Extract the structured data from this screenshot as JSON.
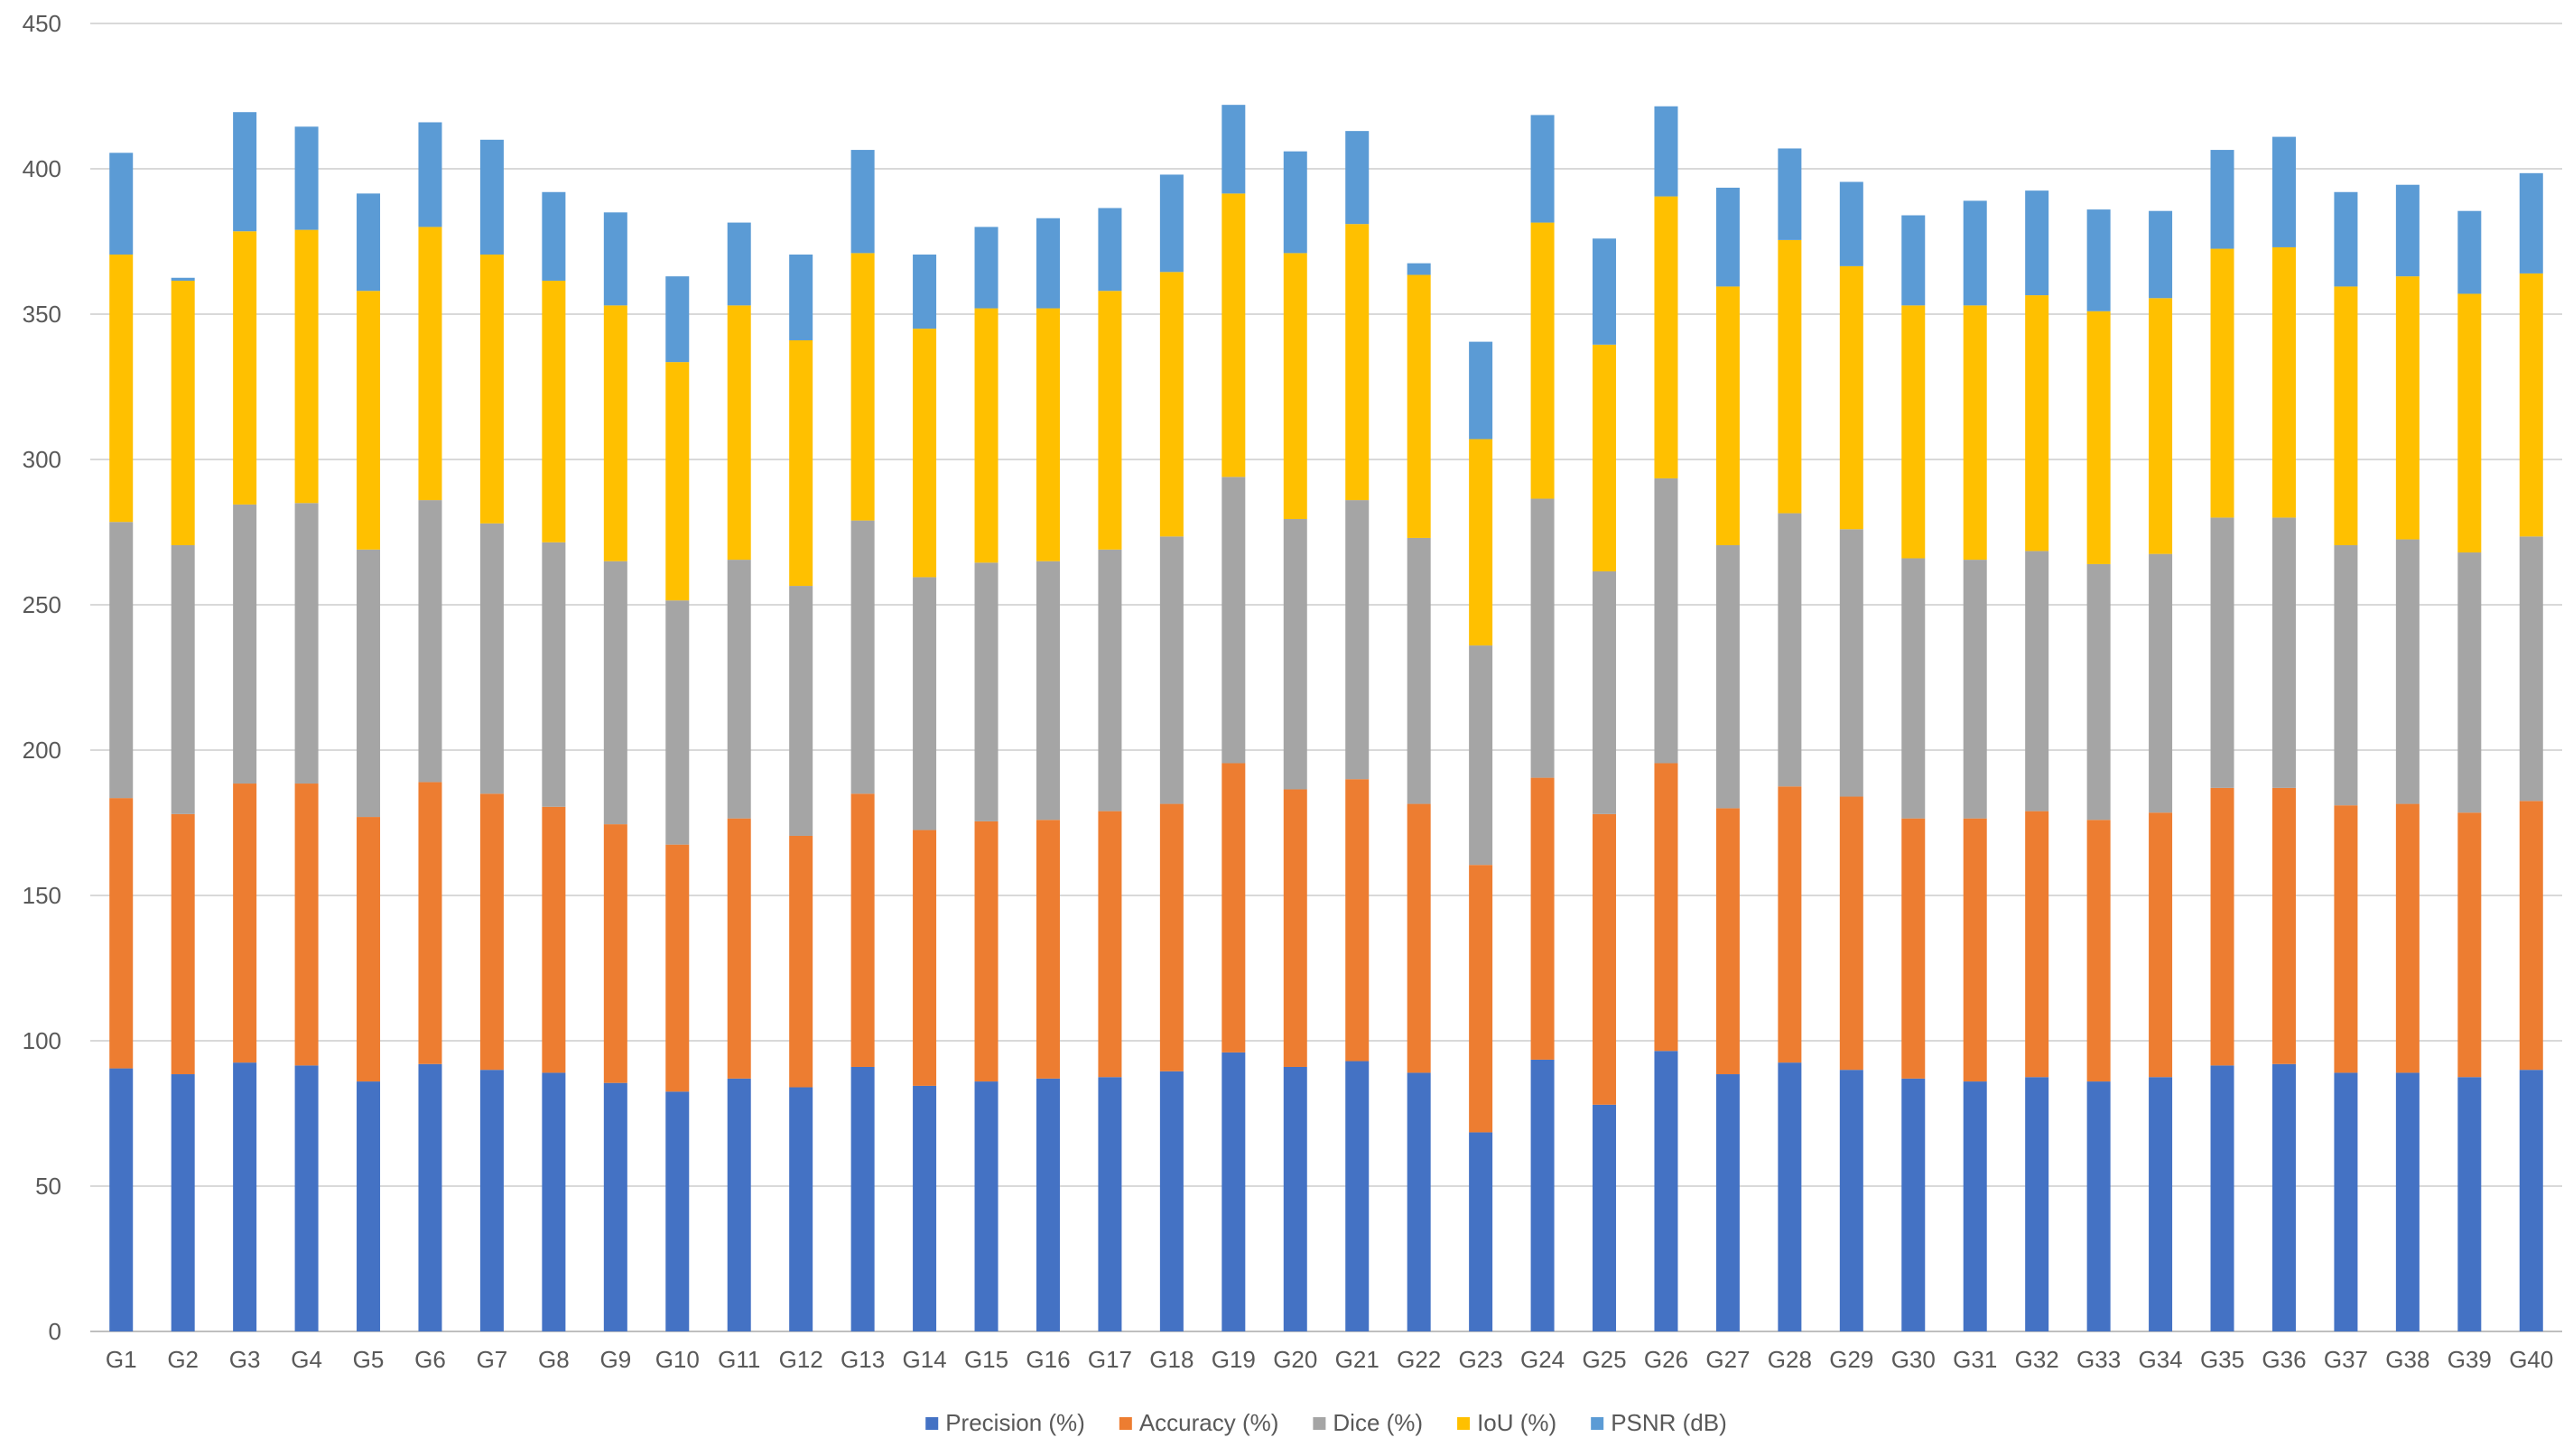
{
  "chart_data": {
    "type": "bar",
    "stacked": true,
    "title": "",
    "xlabel": "",
    "ylabel": "",
    "ylim": [
      0,
      450
    ],
    "yticks": [
      0,
      50,
      100,
      150,
      200,
      250,
      300,
      350,
      400,
      450
    ],
    "grid": true,
    "legend_position": "bottom",
    "categories": [
      "G1",
      "G2",
      "G3",
      "G4",
      "G5",
      "G6",
      "G7",
      "G8",
      "G9",
      "G10",
      "G11",
      "G12",
      "G13",
      "G14",
      "G15",
      "G16",
      "G17",
      "G18",
      "G19",
      "G20",
      "G21",
      "G22",
      "G23",
      "G24",
      "G25",
      "G26",
      "G27",
      "G28",
      "G29",
      "G30",
      "G31",
      "G32",
      "G33",
      "G34",
      "G35",
      "G36",
      "G37",
      "G38",
      "G39",
      "G40"
    ],
    "series": [
      {
        "name": "Precision (%)",
        "color": "#4472C4",
        "values": [
          90.5,
          88.5,
          92.5,
          91.5,
          86,
          92,
          90,
          89,
          85.5,
          82.5,
          87,
          84,
          91,
          84.5,
          86,
          87,
          87.5,
          89.5,
          96,
          91,
          93,
          89,
          68.5,
          93.5,
          78,
          96.5,
          88.5,
          92.5,
          90,
          87,
          86,
          87.5,
          86,
          87.5,
          91.5,
          92,
          89,
          89,
          87.5,
          90
        ]
      },
      {
        "name": "Accuracy (%)",
        "color": "#ED7D31",
        "values": [
          93,
          89.5,
          96,
          97,
          91,
          97,
          95,
          91.5,
          89,
          85,
          89.5,
          86.5,
          94,
          88,
          89.5,
          89,
          91.5,
          92,
          99.5,
          95.5,
          97,
          92.5,
          92,
          97,
          100,
          99,
          91.5,
          95,
          94,
          89.5,
          90.5,
          91.5,
          90,
          91,
          95.5,
          95,
          92,
          92.5,
          91,
          92.5
        ]
      },
      {
        "name": "Dice (%)",
        "color": "#A5A5A5",
        "values": [
          95,
          92.5,
          96,
          96.5,
          92,
          97,
          93,
          91,
          90.5,
          84,
          89,
          86,
          94,
          87,
          89,
          89,
          90,
          92,
          98.5,
          93,
          96,
          91.5,
          75.5,
          96,
          83.5,
          98,
          90.5,
          94,
          92,
          89.5,
          89,
          89.5,
          88,
          89,
          93,
          93,
          89.5,
          91,
          89.5,
          91
        ]
      },
      {
        "name": "IoU (%)",
        "color": "#FFC000",
        "values": [
          92,
          91,
          94,
          94,
          89,
          94,
          92.5,
          90,
          88,
          82,
          87.5,
          84.5,
          92,
          85.5,
          87.5,
          87,
          89,
          91,
          97.5,
          91.5,
          95,
          90.5,
          71,
          95,
          78,
          97,
          89,
          94,
          90.5,
          87,
          87.5,
          88,
          87,
          88,
          92.5,
          93,
          89,
          90.5,
          89,
          90.5
        ]
      },
      {
        "name": "PSNR (dB)",
        "color": "#5B9BD5",
        "values": [
          35,
          1,
          41,
          35.5,
          33.5,
          36,
          39.5,
          30.5,
          32,
          29.5,
          28.5,
          29.5,
          35.5,
          25.5,
          28,
          31,
          28.5,
          33.5,
          30.5,
          35,
          32,
          4,
          33.5,
          37,
          36.5,
          31,
          34,
          31.5,
          29,
          31,
          36,
          36,
          35,
          30,
          34,
          38,
          32.5,
          31.5,
          28.5,
          34.5
        ]
      }
    ]
  }
}
